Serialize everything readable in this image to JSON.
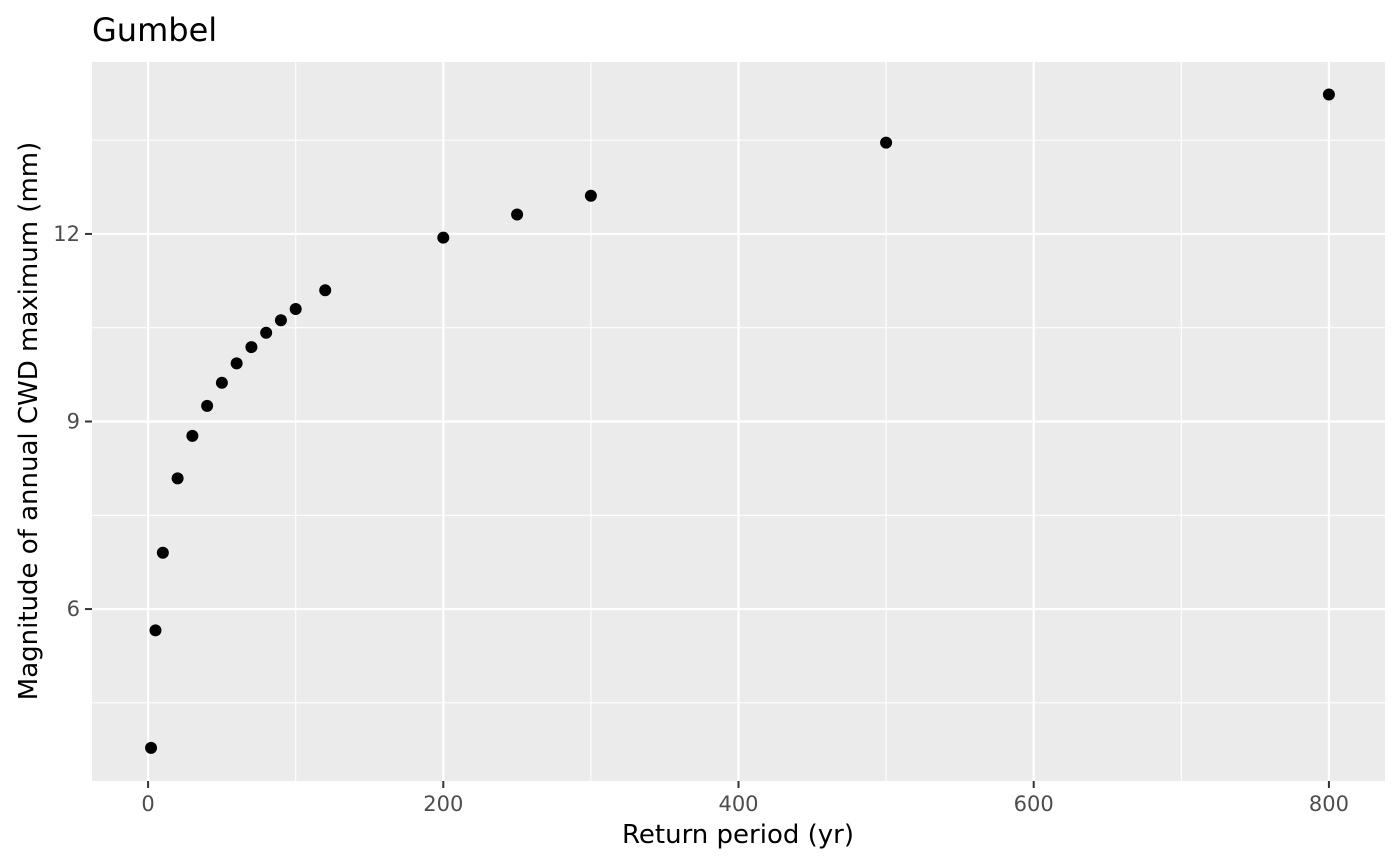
{
  "chart_data": {
    "type": "scatter",
    "title": "Gumbel",
    "xlabel": "Return period (yr)",
    "ylabel": "Magnitude of annual CWD maximum (mm)",
    "xlim": [
      -38,
      838
    ],
    "ylim": [
      3.25,
      14.75
    ],
    "x_ticks": [
      0,
      200,
      400,
      600,
      800
    ],
    "x_tick_labels": [
      "0",
      "200",
      "400",
      "600",
      "800"
    ],
    "y_ticks": [
      6,
      9,
      12
    ],
    "y_tick_labels": [
      "6",
      "9",
      "12"
    ],
    "x_minor_grid": [
      100,
      300,
      500,
      700
    ],
    "y_minor_grid": [
      4.5,
      7.5,
      10.5,
      13.5
    ],
    "grid": true,
    "legend": "none",
    "colors": {
      "panel_background": "#ebebeb",
      "grid_line": "#ffffff",
      "point": "#000000",
      "tick": "#333333"
    },
    "series": [
      {
        "x": [
          2,
          5,
          10,
          20,
          30,
          40,
          50,
          60,
          70,
          80,
          90,
          100,
          120,
          200,
          250,
          300,
          500,
          800
        ],
        "y": [
          3.78,
          5.66,
          6.9,
          8.09,
          8.77,
          9.25,
          9.62,
          9.93,
          10.19,
          10.42,
          10.62,
          10.8,
          11.1,
          11.94,
          12.31,
          12.61,
          13.46,
          14.23
        ]
      }
    ]
  }
}
